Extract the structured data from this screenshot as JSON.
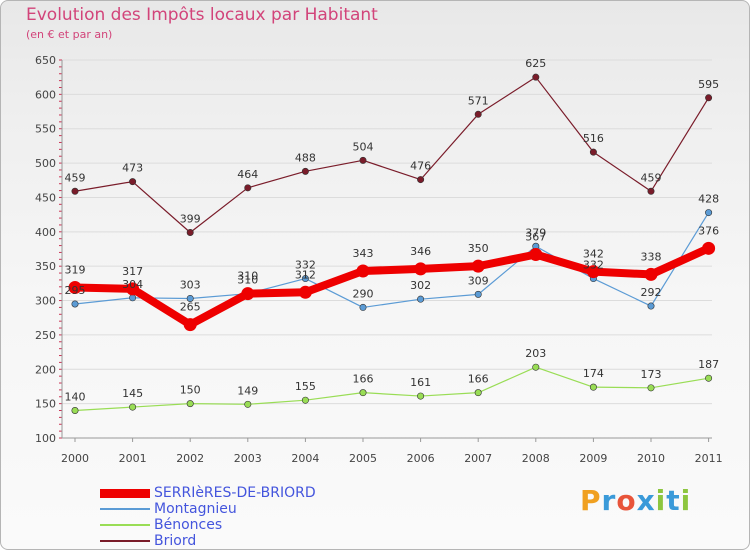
{
  "header": {
    "title": "Evolution des Impôts locaux par Habitant",
    "subtitle": "(en € et par an)"
  },
  "brand": {
    "text": "Proxiti",
    "letters": [
      "P",
      "r",
      "o",
      "x",
      "i",
      "t",
      "i"
    ]
  },
  "chart_data": {
    "type": "line",
    "title": "Evolution des Impôts locaux par Habitant",
    "subtitle": "(en € et par an)",
    "xlabel": "",
    "ylabel": "",
    "ylim": [
      100,
      650
    ],
    "yticks": [
      100,
      150,
      200,
      250,
      300,
      350,
      400,
      450,
      500,
      550,
      600,
      650
    ],
    "categories": [
      "2000",
      "2001",
      "2002",
      "2003",
      "2004",
      "2005",
      "2006",
      "2007",
      "2008",
      "2009",
      "2010",
      "2011"
    ],
    "legend_position": "bottom-left",
    "series": [
      {
        "name": "Briord",
        "color": "#7a1c2a",
        "values": [
          459,
          473,
          399,
          464,
          488,
          504,
          476,
          571,
          625,
          516,
          459,
          595
        ]
      },
      {
        "name": "Bénonces",
        "color": "#99dd55",
        "values": [
          140,
          145,
          150,
          149,
          155,
          166,
          161,
          166,
          203,
          174,
          173,
          187
        ]
      },
      {
        "name": "Montagnieu",
        "color": "#5b9bd5",
        "values": [
          295,
          304,
          303,
          310,
          332,
          290,
          302,
          309,
          379,
          332,
          292,
          428
        ]
      },
      {
        "name": "SERRIèRES-DE-BRIORD",
        "color": "#ee0000",
        "values": [
          319,
          317,
          265,
          310,
          312,
          343,
          346,
          350,
          367,
          342,
          338,
          376
        ]
      }
    ],
    "legend": [
      {
        "name": "SERRIèRES-DE-BRIORD",
        "color": "#ee0000"
      },
      {
        "name": "Montagnieu",
        "color": "#5b9bd5"
      },
      {
        "name": "Bénonces",
        "color": "#99dd55"
      },
      {
        "name": "Briord",
        "color": "#7a1c2a"
      }
    ]
  }
}
